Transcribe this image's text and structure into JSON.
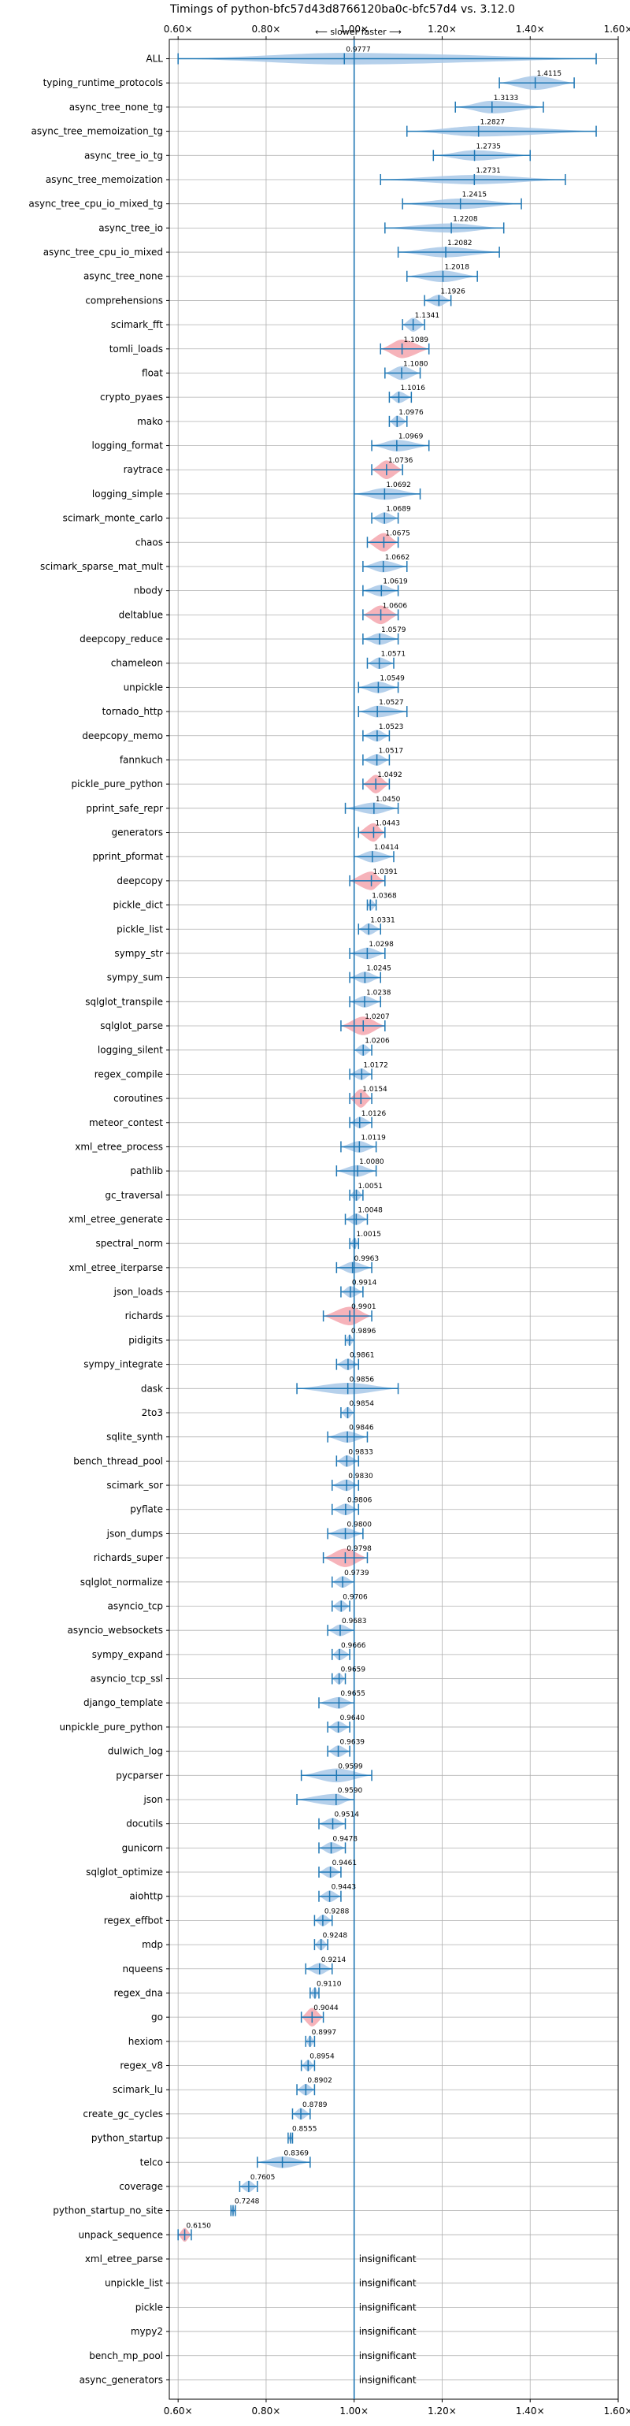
{
  "chart_data": {
    "type": "violin",
    "title": "Timings of python-bfc57d43d8766120ba0c-bfc57d4 vs. 3.12.0",
    "subtitle": "⟵ slower    faster ⟶",
    "xlim": [
      0.58,
      1.6
    ],
    "xticks": [
      0.6,
      0.8,
      1.0,
      1.2,
      1.4,
      1.6
    ],
    "xtick_labels": [
      "0.60×",
      "0.80×",
      "1.00×",
      "1.20×",
      "1.40×",
      "1.60×"
    ],
    "reference_line": 1.0,
    "grid": true,
    "colors": {
      "normal": "#a8c8e8",
      "highlight": "#f4a6ae",
      "line": "#1f77b4"
    },
    "insignificant_text": "insignificant",
    "benchmarks": [
      {
        "name": "ALL",
        "value": 0.9777,
        "label": "0.9777",
        "min": 0.6,
        "max": 1.55,
        "width": 0.5,
        "hl": false
      },
      {
        "name": "typing_runtime_protocols",
        "value": 1.4115,
        "label": "1.4115",
        "min": 1.33,
        "max": 1.5,
        "width": 0.6,
        "hl": false
      },
      {
        "name": "async_tree_none_tg",
        "value": 1.3133,
        "label": "1.3133",
        "min": 1.23,
        "max": 1.43,
        "width": 0.55,
        "hl": false
      },
      {
        "name": "async_tree_memoization_tg",
        "value": 1.2827,
        "label": "1.2827",
        "min": 1.12,
        "max": 1.55,
        "width": 0.45,
        "hl": false
      },
      {
        "name": "async_tree_io_tg",
        "value": 1.2735,
        "label": "1.2735",
        "min": 1.18,
        "max": 1.4,
        "width": 0.45,
        "hl": false
      },
      {
        "name": "async_tree_memoization",
        "value": 1.2731,
        "label": "1.2731",
        "min": 1.06,
        "max": 1.48,
        "width": 0.4,
        "hl": false
      },
      {
        "name": "async_tree_cpu_io_mixed_tg",
        "value": 1.2415,
        "label": "1.2415",
        "min": 1.11,
        "max": 1.38,
        "width": 0.45,
        "hl": false
      },
      {
        "name": "async_tree_io",
        "value": 1.2208,
        "label": "1.2208",
        "min": 1.07,
        "max": 1.34,
        "width": 0.4,
        "hl": false
      },
      {
        "name": "async_tree_cpu_io_mixed",
        "value": 1.2082,
        "label": "1.2082",
        "min": 1.1,
        "max": 1.33,
        "width": 0.45,
        "hl": false
      },
      {
        "name": "async_tree_none",
        "value": 1.2018,
        "label": "1.2018",
        "min": 1.12,
        "max": 1.28,
        "width": 0.5,
        "hl": false
      },
      {
        "name": "comprehensions",
        "value": 1.1926,
        "label": "1.1926",
        "min": 1.16,
        "max": 1.22,
        "width": 0.5,
        "hl": false
      },
      {
        "name": "scimark_fft",
        "value": 1.1341,
        "label": "1.1341",
        "min": 1.11,
        "max": 1.16,
        "width": 0.6,
        "hl": false
      },
      {
        "name": "tomli_loads",
        "value": 1.1089,
        "label": "1.1089",
        "min": 1.06,
        "max": 1.17,
        "width": 0.8,
        "hl": true
      },
      {
        "name": "float",
        "value": 1.108,
        "label": "1.1080",
        "min": 1.07,
        "max": 1.15,
        "width": 0.6,
        "hl": false
      },
      {
        "name": "crypto_pyaes",
        "value": 1.1016,
        "label": "1.1016",
        "min": 1.08,
        "max": 1.13,
        "width": 0.5,
        "hl": false
      },
      {
        "name": "mako",
        "value": 1.0976,
        "label": "1.0976",
        "min": 1.08,
        "max": 1.12,
        "width": 0.5,
        "hl": false
      },
      {
        "name": "logging_format",
        "value": 1.0969,
        "label": "1.0969",
        "min": 1.04,
        "max": 1.17,
        "width": 0.5,
        "hl": false
      },
      {
        "name": "raytrace",
        "value": 1.0736,
        "label": "1.0736",
        "min": 1.04,
        "max": 1.11,
        "width": 0.8,
        "hl": true
      },
      {
        "name": "logging_simple",
        "value": 1.0692,
        "label": "1.0692",
        "min": 1.0,
        "max": 1.15,
        "width": 0.5,
        "hl": false
      },
      {
        "name": "scimark_monte_carlo",
        "value": 1.0689,
        "label": "1.0689",
        "min": 1.04,
        "max": 1.1,
        "width": 0.5,
        "hl": false
      },
      {
        "name": "chaos",
        "value": 1.0675,
        "label": "1.0675",
        "min": 1.03,
        "max": 1.1,
        "width": 0.8,
        "hl": true
      },
      {
        "name": "scimark_sparse_mat_mult",
        "value": 1.0662,
        "label": "1.0662",
        "min": 1.02,
        "max": 1.12,
        "width": 0.5,
        "hl": false
      },
      {
        "name": "nbody",
        "value": 1.0619,
        "label": "1.0619",
        "min": 1.02,
        "max": 1.1,
        "width": 0.5,
        "hl": false
      },
      {
        "name": "deltablue",
        "value": 1.0606,
        "label": "1.0606",
        "min": 1.02,
        "max": 1.1,
        "width": 0.8,
        "hl": true
      },
      {
        "name": "deepcopy_reduce",
        "value": 1.0579,
        "label": "1.0579",
        "min": 1.02,
        "max": 1.1,
        "width": 0.5,
        "hl": false
      },
      {
        "name": "chameleon",
        "value": 1.0571,
        "label": "1.0571",
        "min": 1.03,
        "max": 1.09,
        "width": 0.5,
        "hl": false
      },
      {
        "name": "unpickle",
        "value": 1.0549,
        "label": "1.0549",
        "min": 1.01,
        "max": 1.1,
        "width": 0.5,
        "hl": false
      },
      {
        "name": "tornado_http",
        "value": 1.0527,
        "label": "1.0527",
        "min": 1.01,
        "max": 1.12,
        "width": 0.5,
        "hl": false
      },
      {
        "name": "deepcopy_memo",
        "value": 1.0523,
        "label": "1.0523",
        "min": 1.02,
        "max": 1.08,
        "width": 0.5,
        "hl": false
      },
      {
        "name": "fannkuch",
        "value": 1.0517,
        "label": "1.0517",
        "min": 1.02,
        "max": 1.08,
        "width": 0.5,
        "hl": false
      },
      {
        "name": "pickle_pure_python",
        "value": 1.0492,
        "label": "1.0492",
        "min": 1.02,
        "max": 1.08,
        "width": 0.8,
        "hl": true
      },
      {
        "name": "pprint_safe_repr",
        "value": 1.045,
        "label": "1.0450",
        "min": 0.98,
        "max": 1.1,
        "width": 0.5,
        "hl": false
      },
      {
        "name": "generators",
        "value": 1.0443,
        "label": "1.0443",
        "min": 1.01,
        "max": 1.07,
        "width": 0.8,
        "hl": true
      },
      {
        "name": "pprint_pformat",
        "value": 1.0414,
        "label": "1.0414",
        "min": 1.0,
        "max": 1.09,
        "width": 0.5,
        "hl": false
      },
      {
        "name": "deepcopy",
        "value": 1.0391,
        "label": "1.0391",
        "min": 0.99,
        "max": 1.07,
        "width": 0.8,
        "hl": true
      },
      {
        "name": "pickle_dict",
        "value": 1.0368,
        "label": "1.0368",
        "min": 1.03,
        "max": 1.05,
        "width": 0.5,
        "hl": false
      },
      {
        "name": "pickle_list",
        "value": 1.0331,
        "label": "1.0331",
        "min": 1.01,
        "max": 1.06,
        "width": 0.5,
        "hl": false
      },
      {
        "name": "sympy_str",
        "value": 1.0298,
        "label": "1.0298",
        "min": 0.99,
        "max": 1.07,
        "width": 0.5,
        "hl": false
      },
      {
        "name": "sympy_sum",
        "value": 1.0245,
        "label": "1.0245",
        "min": 0.99,
        "max": 1.06,
        "width": 0.5,
        "hl": false
      },
      {
        "name": "sqlglot_transpile",
        "value": 1.0238,
        "label": "1.0238",
        "min": 0.99,
        "max": 1.06,
        "width": 0.5,
        "hl": false
      },
      {
        "name": "sqlglot_parse",
        "value": 1.0207,
        "label": "1.0207",
        "min": 0.97,
        "max": 1.07,
        "width": 0.8,
        "hl": true
      },
      {
        "name": "logging_silent",
        "value": 1.0206,
        "label": "1.0206",
        "min": 1.0,
        "max": 1.04,
        "width": 0.5,
        "hl": false
      },
      {
        "name": "regex_compile",
        "value": 1.0172,
        "label": "1.0172",
        "min": 0.99,
        "max": 1.04,
        "width": 0.5,
        "hl": false
      },
      {
        "name": "coroutines",
        "value": 1.0154,
        "label": "1.0154",
        "min": 0.99,
        "max": 1.04,
        "width": 0.8,
        "hl": true
      },
      {
        "name": "meteor_contest",
        "value": 1.0126,
        "label": "1.0126",
        "min": 0.99,
        "max": 1.04,
        "width": 0.5,
        "hl": false
      },
      {
        "name": "xml_etree_process",
        "value": 1.0119,
        "label": "1.0119",
        "min": 0.97,
        "max": 1.05,
        "width": 0.5,
        "hl": false
      },
      {
        "name": "pathlib",
        "value": 1.008,
        "label": "1.0080",
        "min": 0.96,
        "max": 1.05,
        "width": 0.5,
        "hl": false
      },
      {
        "name": "gc_traversal",
        "value": 1.0051,
        "label": "1.0051",
        "min": 0.99,
        "max": 1.02,
        "width": 0.5,
        "hl": false
      },
      {
        "name": "xml_etree_generate",
        "value": 1.0048,
        "label": "1.0048",
        "min": 0.98,
        "max": 1.03,
        "width": 0.5,
        "hl": false
      },
      {
        "name": "spectral_norm",
        "value": 1.0015,
        "label": "1.0015",
        "min": 0.99,
        "max": 1.01,
        "width": 0.5,
        "hl": false
      },
      {
        "name": "xml_etree_iterparse",
        "value": 0.9963,
        "label": "0.9963",
        "min": 0.96,
        "max": 1.04,
        "width": 0.5,
        "hl": false
      },
      {
        "name": "json_loads",
        "value": 0.9914,
        "label": "0.9914",
        "min": 0.97,
        "max": 1.02,
        "width": 0.5,
        "hl": false
      },
      {
        "name": "richards",
        "value": 0.9901,
        "label": "0.9901",
        "min": 0.93,
        "max": 1.04,
        "width": 0.8,
        "hl": true
      },
      {
        "name": "pidigits",
        "value": 0.9896,
        "label": "0.9896",
        "min": 0.98,
        "max": 1.0,
        "width": 0.5,
        "hl": false
      },
      {
        "name": "sympy_integrate",
        "value": 0.9861,
        "label": "0.9861",
        "min": 0.96,
        "max": 1.01,
        "width": 0.5,
        "hl": false
      },
      {
        "name": "dask",
        "value": 0.9856,
        "label": "0.9856",
        "min": 0.87,
        "max": 1.1,
        "width": 0.5,
        "hl": false
      },
      {
        "name": "2to3",
        "value": 0.9854,
        "label": "0.9854",
        "min": 0.97,
        "max": 1.0,
        "width": 0.5,
        "hl": false
      },
      {
        "name": "sqlite_synth",
        "value": 0.9846,
        "label": "0.9846",
        "min": 0.94,
        "max": 1.03,
        "width": 0.5,
        "hl": false
      },
      {
        "name": "bench_thread_pool",
        "value": 0.9833,
        "label": "0.9833",
        "min": 0.96,
        "max": 1.01,
        "width": 0.5,
        "hl": false
      },
      {
        "name": "scimark_sor",
        "value": 0.983,
        "label": "0.9830",
        "min": 0.95,
        "max": 1.01,
        "width": 0.5,
        "hl": false
      },
      {
        "name": "pyflate",
        "value": 0.9806,
        "label": "0.9806",
        "min": 0.95,
        "max": 1.01,
        "width": 0.5,
        "hl": false
      },
      {
        "name": "json_dumps",
        "value": 0.98,
        "label": "0.9800",
        "min": 0.94,
        "max": 1.02,
        "width": 0.5,
        "hl": false
      },
      {
        "name": "richards_super",
        "value": 0.9798,
        "label": "0.9798",
        "min": 0.93,
        "max": 1.03,
        "width": 0.8,
        "hl": true
      },
      {
        "name": "sqlglot_normalize",
        "value": 0.9739,
        "label": "0.9739",
        "min": 0.95,
        "max": 1.0,
        "width": 0.5,
        "hl": false
      },
      {
        "name": "asyncio_tcp",
        "value": 0.9706,
        "label": "0.9706",
        "min": 0.95,
        "max": 0.99,
        "width": 0.5,
        "hl": false
      },
      {
        "name": "asyncio_websockets",
        "value": 0.9683,
        "label": "0.9683",
        "min": 0.94,
        "max": 1.0,
        "width": 0.5,
        "hl": false
      },
      {
        "name": "sympy_expand",
        "value": 0.9666,
        "label": "0.9666",
        "min": 0.95,
        "max": 0.99,
        "width": 0.5,
        "hl": false
      },
      {
        "name": "asyncio_tcp_ssl",
        "value": 0.9659,
        "label": "0.9659",
        "min": 0.95,
        "max": 0.98,
        "width": 0.5,
        "hl": false
      },
      {
        "name": "django_template",
        "value": 0.9655,
        "label": "0.9655",
        "min": 0.92,
        "max": 1.0,
        "width": 0.5,
        "hl": false
      },
      {
        "name": "unpickle_pure_python",
        "value": 0.964,
        "label": "0.9640",
        "min": 0.94,
        "max": 0.99,
        "width": 0.5,
        "hl": false
      },
      {
        "name": "dulwich_log",
        "value": 0.9639,
        "label": "0.9639",
        "min": 0.94,
        "max": 0.99,
        "width": 0.5,
        "hl": false
      },
      {
        "name": "pycparser",
        "value": 0.9599,
        "label": "0.9599",
        "min": 0.88,
        "max": 1.04,
        "width": 0.6,
        "hl": false
      },
      {
        "name": "json",
        "value": 0.959,
        "label": "0.9590",
        "min": 0.87,
        "max": 1.0,
        "width": 0.5,
        "hl": false
      },
      {
        "name": "docutils",
        "value": 0.9514,
        "label": "0.9514",
        "min": 0.92,
        "max": 0.98,
        "width": 0.5,
        "hl": false
      },
      {
        "name": "gunicorn",
        "value": 0.9478,
        "label": "0.9478",
        "min": 0.92,
        "max": 0.98,
        "width": 0.5,
        "hl": false
      },
      {
        "name": "sqlglot_optimize",
        "value": 0.9461,
        "label": "0.9461",
        "min": 0.92,
        "max": 0.97,
        "width": 0.5,
        "hl": false
      },
      {
        "name": "aiohttp",
        "value": 0.9443,
        "label": "0.9443",
        "min": 0.92,
        "max": 0.97,
        "width": 0.5,
        "hl": false
      },
      {
        "name": "regex_effbot",
        "value": 0.9288,
        "label": "0.9288",
        "min": 0.91,
        "max": 0.95,
        "width": 0.5,
        "hl": false
      },
      {
        "name": "mdp",
        "value": 0.9248,
        "label": "0.9248",
        "min": 0.91,
        "max": 0.94,
        "width": 0.5,
        "hl": false
      },
      {
        "name": "nqueens",
        "value": 0.9214,
        "label": "0.9214",
        "min": 0.89,
        "max": 0.95,
        "width": 0.5,
        "hl": false
      },
      {
        "name": "regex_dna",
        "value": 0.911,
        "label": "0.9110",
        "min": 0.9,
        "max": 0.92,
        "width": 0.5,
        "hl": false
      },
      {
        "name": "go",
        "value": 0.9044,
        "label": "0.9044",
        "min": 0.88,
        "max": 0.93,
        "width": 0.8,
        "hl": true
      },
      {
        "name": "hexiom",
        "value": 0.8997,
        "label": "0.8997",
        "min": 0.89,
        "max": 0.91,
        "width": 0.5,
        "hl": false
      },
      {
        "name": "regex_v8",
        "value": 0.8954,
        "label": "0.8954",
        "min": 0.88,
        "max": 0.91,
        "width": 0.5,
        "hl": false
      },
      {
        "name": "scimark_lu",
        "value": 0.8902,
        "label": "0.8902",
        "min": 0.87,
        "max": 0.91,
        "width": 0.5,
        "hl": false
      },
      {
        "name": "create_gc_cycles",
        "value": 0.8789,
        "label": "0.8789",
        "min": 0.86,
        "max": 0.9,
        "width": 0.5,
        "hl": false
      },
      {
        "name": "python_startup",
        "value": 0.8555,
        "label": "0.8555",
        "min": 0.85,
        "max": 0.86,
        "width": 0.4,
        "hl": false
      },
      {
        "name": "telco",
        "value": 0.8369,
        "label": "0.8369",
        "min": 0.78,
        "max": 0.9,
        "width": 0.5,
        "hl": false
      },
      {
        "name": "coverage",
        "value": 0.7605,
        "label": "0.7605",
        "min": 0.74,
        "max": 0.78,
        "width": 0.5,
        "hl": false
      },
      {
        "name": "python_startup_no_site",
        "value": 0.7248,
        "label": "0.7248",
        "min": 0.72,
        "max": 0.73,
        "width": 0.4,
        "hl": false
      },
      {
        "name": "unpack_sequence",
        "value": 0.615,
        "label": "0.6150",
        "min": 0.6,
        "max": 0.63,
        "width": 0.6,
        "hl": true
      },
      {
        "name": "xml_etree_parse",
        "insignificant": true
      },
      {
        "name": "unpickle_list",
        "insignificant": true
      },
      {
        "name": "pickle",
        "insignificant": true
      },
      {
        "name": "mypy2",
        "insignificant": true
      },
      {
        "name": "bench_mp_pool",
        "insignificant": true
      },
      {
        "name": "async_generators",
        "insignificant": true
      }
    ]
  }
}
